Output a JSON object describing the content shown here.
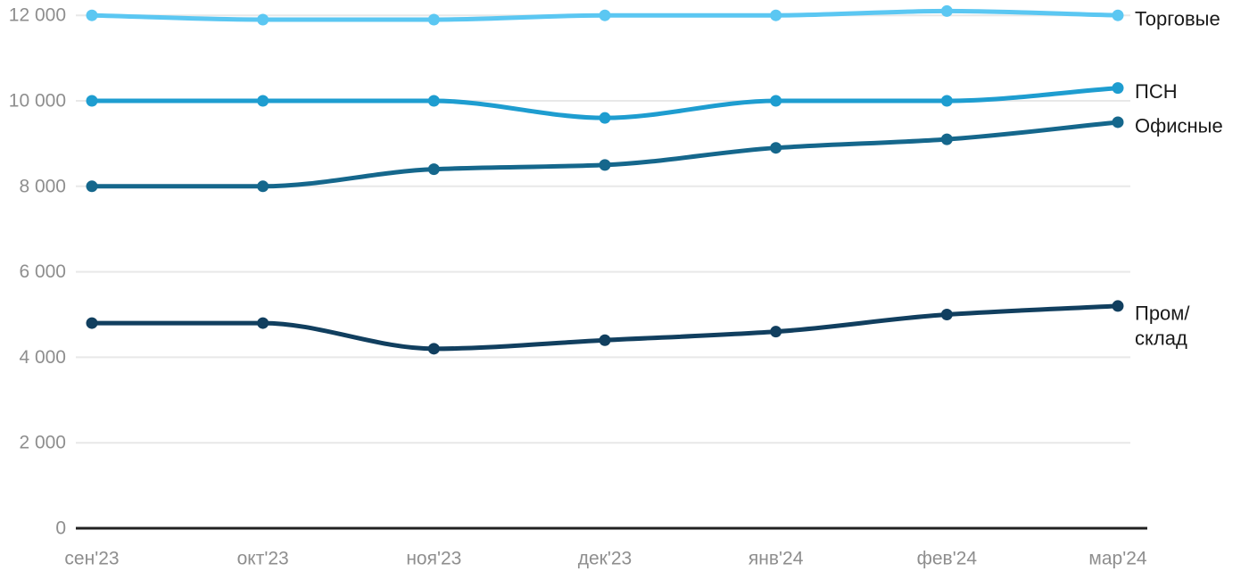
{
  "chart_data": {
    "type": "line",
    "title": "",
    "xlabel": "",
    "ylabel": "",
    "grid": true,
    "legend_position": "right-end-labels",
    "categories": [
      "сен'23",
      "окт'23",
      "ноя'23",
      "дек'23",
      "янв'24",
      "фев'24",
      "мар'24"
    ],
    "series": [
      {
        "name": "Торговые",
        "key": "trade",
        "color": "#5BC7F2",
        "values": [
          12000,
          11900,
          11900,
          12000,
          12000,
          12100,
          12000
        ],
        "label_lines": [
          "Торговые"
        ]
      },
      {
        "name": "ПСН",
        "key": "psn",
        "color": "#1E9DD0",
        "values": [
          10000,
          10000,
          10000,
          9600,
          10000,
          10000,
          10300
        ],
        "label_lines": [
          "ПСН"
        ]
      },
      {
        "name": "Офисные",
        "key": "office",
        "color": "#15678C",
        "values": [
          8000,
          8000,
          8400,
          8500,
          8900,
          9100,
          9500
        ],
        "label_lines": [
          "Офисные"
        ]
      },
      {
        "name": "Пром/склад",
        "key": "industrial-warehouse",
        "color": "#113F5F",
        "values": [
          4800,
          4800,
          4200,
          4400,
          4600,
          5000,
          5200
        ],
        "label_lines": [
          "Пром/",
          "склад"
        ]
      }
    ],
    "y_axis": {
      "min": 0,
      "max": 12000,
      "ticks": [
        0,
        2000,
        4000,
        6000,
        8000,
        10000,
        12000
      ],
      "tick_labels": [
        "0",
        "2 000",
        "4 000",
        "6 000",
        "8 000",
        "10 000",
        "12 000"
      ]
    }
  },
  "colors": {
    "background": "#FFFFFF",
    "grid": "#E8E8E8",
    "axis": "#212121",
    "tick_text": "#8E8E8E",
    "label_text": "#1A1A1A"
  }
}
